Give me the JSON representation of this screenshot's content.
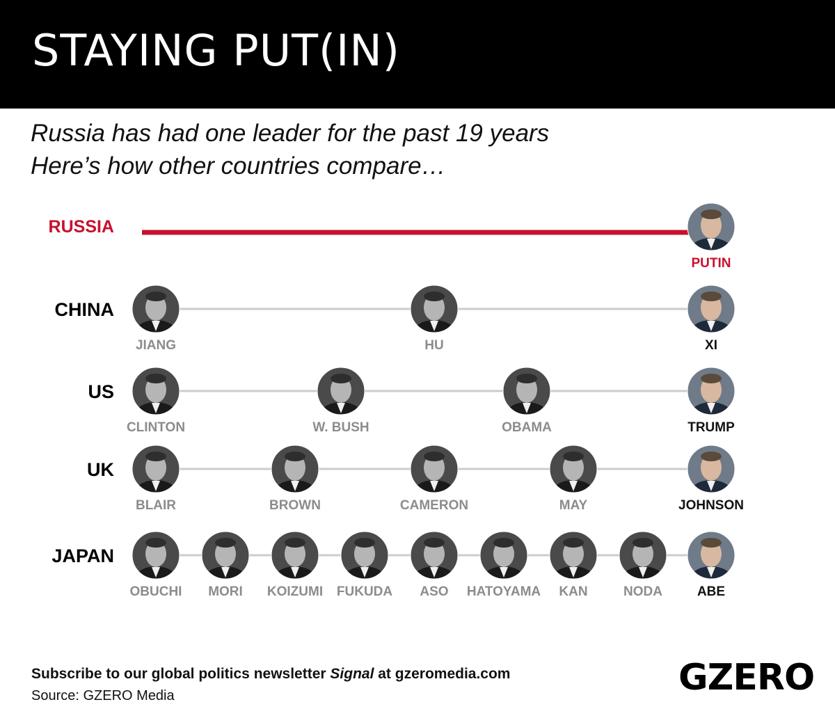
{
  "header": {
    "title": "STAYING PUT(IN)"
  },
  "subtitle": {
    "line1": "Russia has had one leader for the past 19 years",
    "line2": "Here’s how other countries compare…"
  },
  "countries": [
    {
      "name": "RUSSIA",
      "highlight": true,
      "leaders": [
        "PUTIN"
      ]
    },
    {
      "name": "CHINA",
      "highlight": false,
      "leaders": [
        "JIANG",
        "HU",
        "XI"
      ]
    },
    {
      "name": "US",
      "highlight": false,
      "leaders": [
        "CLINTON",
        "W. BUSH",
        "OBAMA",
        "TRUMP"
      ]
    },
    {
      "name": "UK",
      "highlight": false,
      "leaders": [
        "BLAIR",
        "BROWN",
        "CAMERON",
        "MAY",
        "JOHNSON"
      ]
    },
    {
      "name": "JAPAN",
      "highlight": false,
      "leaders": [
        "OBUCHI",
        "MORI",
        "KOIZUMI",
        "FUKUDA",
        "ASO",
        "HATOYAMA",
        "KAN",
        "NODA",
        "ABE"
      ]
    }
  ],
  "colors": {
    "russia": "#c8102e",
    "connector": "#cccccc",
    "past_leader_label": "#8c8c8c",
    "current_leader_label": "#111111",
    "header_bg": "#000000"
  },
  "footer": {
    "subscribe_before": "Subscribe to our global politics newsletter ",
    "subscribe_signal": "Signal",
    "subscribe_after": " at gzeromedia.com",
    "source": "Source: GZERO Media",
    "logo": "GZERO"
  }
}
